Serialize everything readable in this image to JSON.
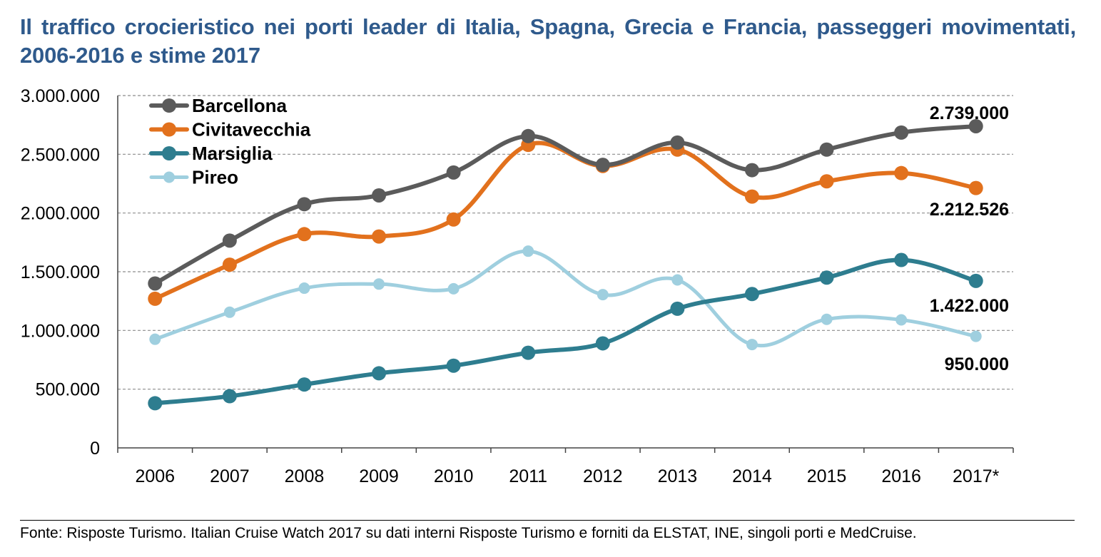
{
  "title": "Il traffico crocieristico nei porti leader di Italia, Spagna, Grecia e Francia, passeggeri movimentati, 2006-2016 e stime 2017",
  "source": "Fonte: Risposte Turismo. Italian Cruise Watch 2017 su dati interni Risposte Turismo e forniti da ELSTAT, INE, singoli porti e MedCruise.",
  "chart_data": {
    "type": "line",
    "title": "Il traffico crocieristico nei porti leader di Italia, Spagna, Grecia e Francia, passeggeri movimentati, 2006-2016 e stime 2017",
    "xlabel": "",
    "ylabel": "",
    "categories": [
      "2006",
      "2007",
      "2008",
      "2009",
      "2010",
      "2011",
      "2012",
      "2013",
      "2014",
      "2015",
      "2016",
      "2017*"
    ],
    "ylim": [
      0,
      3000000
    ],
    "yticks": [
      0,
      500000,
      1000000,
      1500000,
      2000000,
      2500000,
      3000000
    ],
    "ytick_labels": [
      "0",
      "500.000",
      "1.000.000",
      "1.500.000",
      "2.000.000",
      "2.500.000",
      "3.000.000"
    ],
    "grid": true,
    "legend_position": "top-left",
    "series": [
      {
        "name": "Barcellona",
        "color": "#5b5b5b",
        "values": [
          1400000,
          1765000,
          2075000,
          2150000,
          2345000,
          2655000,
          2410000,
          2600000,
          2365000,
          2540000,
          2685000,
          2739000
        ],
        "end_label": "2.739.000"
      },
      {
        "name": "Civitavecchia",
        "color": "#e2711d",
        "values": [
          1270000,
          1560000,
          1820000,
          1800000,
          1945000,
          2580000,
          2400000,
          2540000,
          2140000,
          2270000,
          2340000,
          2212526
        ],
        "end_label": "2.212.526"
      },
      {
        "name": "Marsiglia",
        "color": "#2e7d8f",
        "values": [
          380000,
          440000,
          540000,
          635000,
          700000,
          810000,
          890000,
          1185000,
          1310000,
          1450000,
          1600000,
          1422000
        ],
        "end_label": "1.422.000"
      },
      {
        "name": "Pireo",
        "color": "#9fcfdf",
        "values": [
          925000,
          1155000,
          1360000,
          1395000,
          1355000,
          1675000,
          1305000,
          1430000,
          880000,
          1095000,
          1090000,
          950000
        ],
        "end_label": "950.000"
      }
    ]
  }
}
